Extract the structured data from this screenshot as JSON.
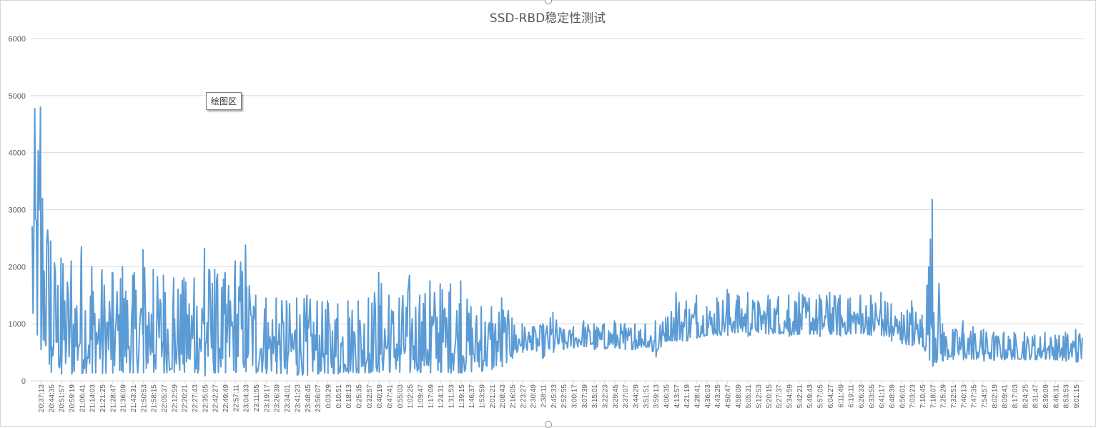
{
  "tooltip": "绘图区",
  "colors": {
    "series": "#5b9bd5",
    "grid": "#d9d9d9",
    "text": "#595959"
  },
  "chart_data": {
    "type": "line",
    "title": "SSD-RBD稳定性测试",
    "xlabel": "",
    "ylabel": "",
    "ylim": [
      0,
      6000
    ],
    "y_ticks": [
      0,
      1000,
      2000,
      3000,
      4000,
      5000,
      6000
    ],
    "grid": true,
    "x_tick_labels": [
      "20:37:13",
      "20:44:35",
      "20:51:57",
      "20:59:19",
      "21:06:41",
      "21:14:03",
      "21:21:25",
      "21:28:47",
      "21:36:09",
      "21:43:31",
      "21:50:53",
      "21:58:15",
      "22:05:37",
      "22:12:59",
      "22:20:21",
      "22:27:43",
      "22:35:05",
      "22:42:27",
      "22:49:49",
      "22:57:11",
      "23:04:33",
      "23:11:55",
      "23:19:17",
      "23:26:39",
      "23:34:01",
      "23:41:23",
      "23:48:45",
      "23:56:07",
      "0:03:29",
      "0:10:51",
      "0:18:13",
      "0:25:35",
      "0:32:57",
      "0:40:19",
      "0:47:41",
      "0:55:03",
      "1:02:25",
      "1:09:47",
      "1:17:09",
      "1:24:31",
      "1:31:53",
      "1:39:15",
      "1:46:37",
      "1:53:59",
      "2:01:21",
      "2:08:43",
      "2:16:05",
      "2:23:27",
      "2:30:49",
      "2:38:11",
      "2:45:33",
      "2:52:55",
      "3:00:17",
      "3:07:39",
      "3:15:01",
      "3:22:23",
      "3:29:45",
      "3:37:07",
      "3:44:29",
      "3:51:51",
      "3:59:13",
      "4:06:35",
      "4:13:57",
      "4:21:19",
      "4:28:41",
      "4:36:03",
      "4:43:25",
      "4:50:47",
      "4:58:09",
      "5:05:31",
      "5:12:53",
      "5:20:15",
      "5:27:37",
      "5:34:59",
      "5:42:21",
      "5:49:43",
      "5:57:05",
      "6:04:27",
      "6:11:49",
      "6:19:11",
      "6:26:33",
      "6:33:55",
      "6:41:17",
      "6:48:39",
      "6:56:01",
      "7:03:23",
      "7:10:45",
      "7:18:07",
      "7:25:29",
      "7:32:51",
      "7:40:13",
      "7:47:35",
      "7:54:57",
      "8:02:19",
      "8:09:41",
      "8:17:03",
      "8:24:25",
      "8:31:47",
      "8:39:09",
      "8:46:31",
      "8:53:53",
      "9:01:15"
    ],
    "series": [
      {
        "name": "SSD-RBD",
        "envelope_by_tick": [
          {
            "low": 550,
            "high": 4800
          },
          {
            "low": 150,
            "high": 2450
          },
          {
            "low": 120,
            "high": 2150
          },
          {
            "low": 120,
            "high": 2100
          },
          {
            "low": 130,
            "high": 2350
          },
          {
            "low": 140,
            "high": 2000
          },
          {
            "low": 130,
            "high": 1950
          },
          {
            "low": 140,
            "high": 1900
          },
          {
            "low": 150,
            "high": 2000
          },
          {
            "low": 140,
            "high": 1850
          },
          {
            "low": 140,
            "high": 2300
          },
          {
            "low": 150,
            "high": 1950
          },
          {
            "low": 140,
            "high": 1850
          },
          {
            "low": 150,
            "high": 1800
          },
          {
            "low": 150,
            "high": 1800
          },
          {
            "low": 150,
            "high": 1800
          },
          {
            "low": 90,
            "high": 2320
          },
          {
            "low": 140,
            "high": 1950
          },
          {
            "low": 140,
            "high": 1900
          },
          {
            "low": 150,
            "high": 2100
          },
          {
            "low": 160,
            "high": 2380
          },
          {
            "low": 140,
            "high": 1500
          },
          {
            "low": 130,
            "high": 1450
          },
          {
            "low": 130,
            "high": 1450
          },
          {
            "low": 120,
            "high": 1400
          },
          {
            "low": 100,
            "high": 1450
          },
          {
            "low": 100,
            "high": 1500
          },
          {
            "low": 120,
            "high": 1400
          },
          {
            "low": 130,
            "high": 1400
          },
          {
            "low": 120,
            "high": 1350
          },
          {
            "low": 140,
            "high": 1400
          },
          {
            "low": 140,
            "high": 1400
          },
          {
            "low": 140,
            "high": 1450
          },
          {
            "low": 150,
            "high": 1900
          },
          {
            "low": 150,
            "high": 1500
          },
          {
            "low": 150,
            "high": 1450
          },
          {
            "low": 150,
            "high": 1850
          },
          {
            "low": 150,
            "high": 1500
          },
          {
            "low": 140,
            "high": 1750
          },
          {
            "low": 150,
            "high": 1700
          },
          {
            "low": 140,
            "high": 1700
          },
          {
            "low": 140,
            "high": 1750
          },
          {
            "low": 160,
            "high": 1300
          },
          {
            "low": 170,
            "high": 1300
          },
          {
            "low": 200,
            "high": 1300
          },
          {
            "low": 250,
            "high": 1450
          },
          {
            "low": 400,
            "high": 1100
          },
          {
            "low": 500,
            "high": 1000
          },
          {
            "low": 550,
            "high": 950
          },
          {
            "low": 400,
            "high": 1000
          },
          {
            "low": 500,
            "high": 1200
          },
          {
            "low": 550,
            "high": 900
          },
          {
            "low": 580,
            "high": 950
          },
          {
            "low": 600,
            "high": 1050
          },
          {
            "low": 550,
            "high": 1000
          },
          {
            "low": 560,
            "high": 1000
          },
          {
            "low": 580,
            "high": 1050
          },
          {
            "low": 550,
            "high": 1000
          },
          {
            "low": 550,
            "high": 1000
          },
          {
            "low": 600,
            "high": 1000
          },
          {
            "low": 420,
            "high": 1050
          },
          {
            "low": 700,
            "high": 1100
          },
          {
            "low": 700,
            "high": 1550
          },
          {
            "low": 700,
            "high": 1400
          },
          {
            "low": 750,
            "high": 1500
          },
          {
            "low": 800,
            "high": 1300
          },
          {
            "low": 800,
            "high": 1450
          },
          {
            "low": 800,
            "high": 1600
          },
          {
            "low": 850,
            "high": 1500
          },
          {
            "low": 780,
            "high": 1550
          },
          {
            "low": 850,
            "high": 1400
          },
          {
            "low": 820,
            "high": 1500
          },
          {
            "low": 830,
            "high": 1480
          },
          {
            "low": 780,
            "high": 1500
          },
          {
            "low": 820,
            "high": 1550
          },
          {
            "low": 820,
            "high": 1450
          },
          {
            "low": 780,
            "high": 1500
          },
          {
            "low": 820,
            "high": 1550
          },
          {
            "low": 790,
            "high": 1500
          },
          {
            "low": 820,
            "high": 1450
          },
          {
            "low": 830,
            "high": 1500
          },
          {
            "low": 800,
            "high": 1500
          },
          {
            "low": 800,
            "high": 1550
          },
          {
            "low": 700,
            "high": 1350
          },
          {
            "low": 650,
            "high": 1200
          },
          {
            "low": 620,
            "high": 1400
          },
          {
            "low": 600,
            "high": 1150
          },
          {
            "low": 260,
            "high": 3180
          },
          {
            "low": 350,
            "high": 1000
          },
          {
            "low": 380,
            "high": 900
          },
          {
            "low": 370,
            "high": 1050
          },
          {
            "low": 380,
            "high": 950
          },
          {
            "low": 350,
            "high": 900
          },
          {
            "low": 360,
            "high": 850
          },
          {
            "low": 370,
            "high": 850
          },
          {
            "low": 380,
            "high": 850
          },
          {
            "low": 370,
            "high": 850
          },
          {
            "low": 370,
            "high": 800
          },
          {
            "low": 380,
            "high": 850
          },
          {
            "low": 370,
            "high": 800
          },
          {
            "low": 350,
            "high": 850
          },
          {
            "low": 330,
            "high": 900
          }
        ]
      }
    ]
  }
}
